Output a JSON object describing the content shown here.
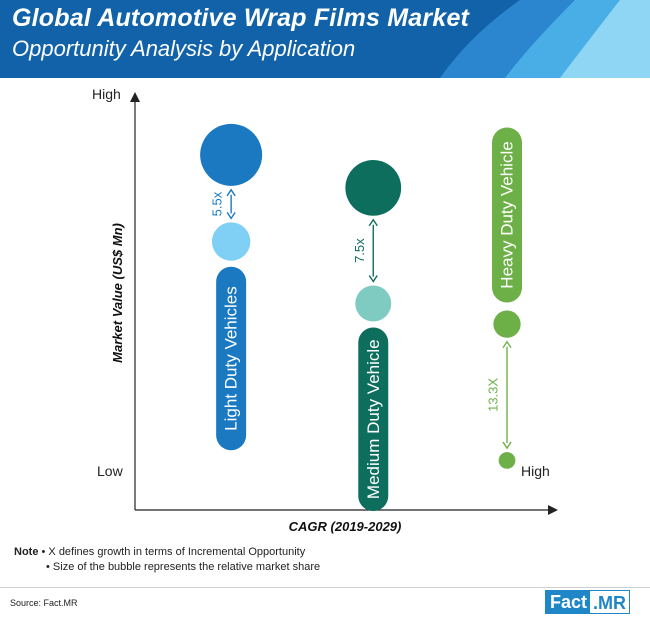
{
  "header": {
    "title": "Global Automotive Wrap Films Market",
    "subtitle": "Opportunity Analysis by Application"
  },
  "chart_data": {
    "type": "scatter",
    "xlabel": "CAGR (2019-2029)",
    "ylabel": "Market Value (US$ Mn)",
    "x_ticks": [
      "Low",
      "High"
    ],
    "y_ticks": [
      "High",
      "Low"
    ],
    "xlim": [
      0,
      100
    ],
    "ylim": [
      0,
      100
    ],
    "series": [
      {
        "name": "Light Duty Vehicles",
        "color": "#1a79c1",
        "light_color": "#7fd0f4",
        "multiplier": "5.5x",
        "points": [
          {
            "x": 23,
            "y": 86,
            "size": 1.0
          },
          {
            "x": 23,
            "y": 65,
            "size": 0.62
          }
        ]
      },
      {
        "name": "Medium Duty Vehicle",
        "color": "#0e6e5e",
        "light_color": "#7fcbc1",
        "multiplier": "7.5x",
        "points": [
          {
            "x": 57,
            "y": 78,
            "size": 0.9
          },
          {
            "x": 57,
            "y": 50,
            "size": 0.58
          }
        ]
      },
      {
        "name": "Heavy Duty Vehicle",
        "color": "#6db048",
        "light_color": "#6db048",
        "multiplier": "13.3X",
        "points": [
          {
            "x": 89,
            "y": 45,
            "size": 0.44
          },
          {
            "x": 89,
            "y": 12,
            "size": 0.27
          }
        ]
      }
    ]
  },
  "note": {
    "label": "Note",
    "line1": "• X defines growth in terms of Incremental Opportunity",
    "line2": "• Size of the bubble represents the relative market share"
  },
  "source": "Source: Fact.MR",
  "logo": {
    "part1": "Fact",
    "part2": ".MR"
  }
}
